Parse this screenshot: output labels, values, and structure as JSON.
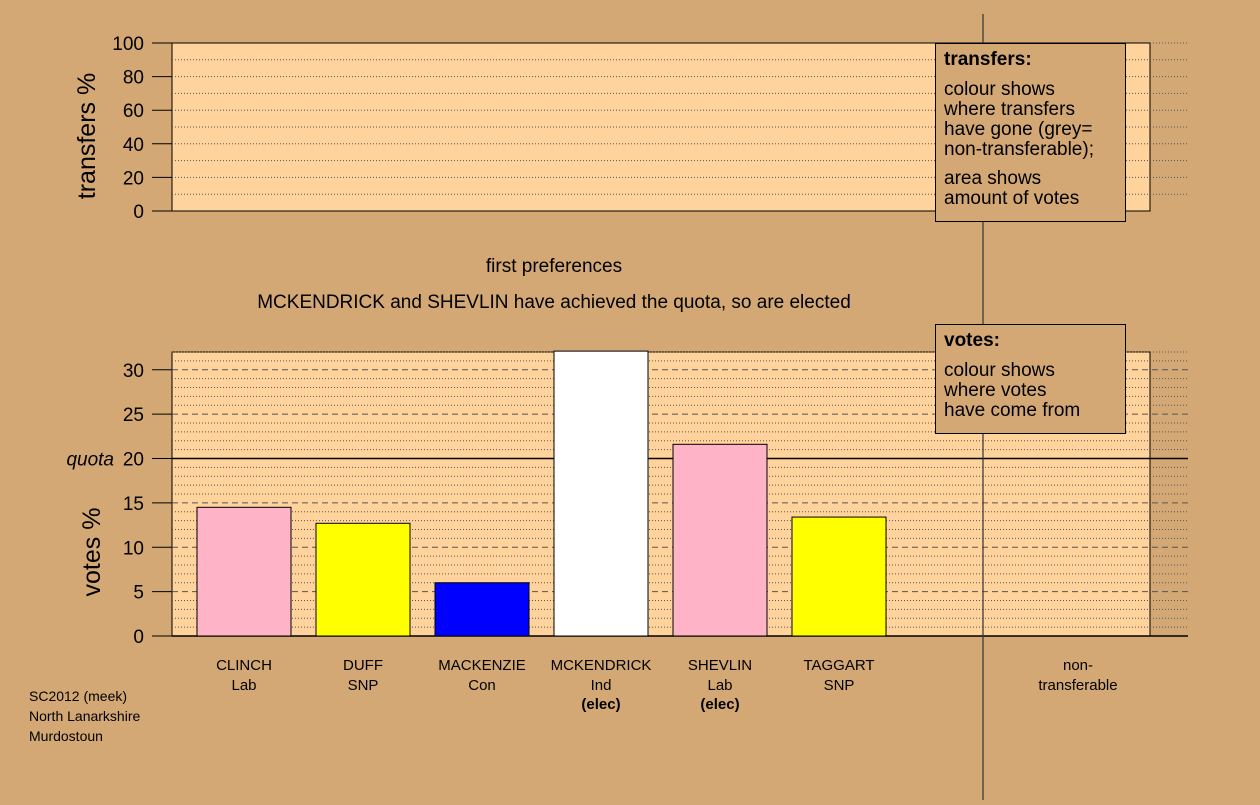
{
  "colors": {
    "background": "#d3a875",
    "plot_bg": "#ffd39b",
    "Lab": "#ffb3c6",
    "SNP": "#ffff00",
    "Con": "#0000ff",
    "Ind": "#ffffff"
  },
  "status": {
    "round_label": "first preferences",
    "message": "MCKENDRICK and SHEVLIN have achieved the quota, so are elected"
  },
  "legend_transfers": {
    "title": "transfers:",
    "text1": [
      "colour shows",
      "where transfers",
      "have gone (grey=",
      "non-transferable);"
    ],
    "text2": [
      "area shows",
      "amount of votes"
    ]
  },
  "legend_votes": {
    "title": "votes:",
    "text": [
      "colour shows",
      "where votes",
      "have come from"
    ]
  },
  "footer": [
    "SC2012 (meek)",
    "North Lanarkshire",
    "Murdostoun"
  ],
  "chart_data": [
    {
      "type": "bar",
      "ylabel": "transfers %",
      "ylim": [
        0,
        100
      ],
      "yticks": [
        "0",
        "20",
        "40",
        "60",
        "80",
        "100"
      ],
      "values": []
    },
    {
      "type": "bar",
      "ylabel": "votes %",
      "ylim": [
        0,
        32
      ],
      "yticks": [
        "0",
        "5",
        "10",
        "15",
        "20",
        "25",
        "30"
      ],
      "quota": {
        "label": "quota",
        "value": 20
      },
      "categories": [
        "CLINCH",
        "DUFF",
        "MACKENZIE",
        "MCKENDRICK",
        "SHEVLIN",
        "TAGGART"
      ],
      "parties": [
        "Lab",
        "SNP",
        "Con",
        "Ind",
        "Lab",
        "SNP"
      ],
      "status": [
        "",
        "",
        "",
        "(elec)",
        "(elec)",
        ""
      ],
      "values": [
        14.5,
        12.7,
        6.0,
        32.1,
        21.6,
        13.4
      ],
      "nontransferable": {
        "label": [
          "non-",
          "transferable"
        ],
        "value": 0
      }
    }
  ]
}
